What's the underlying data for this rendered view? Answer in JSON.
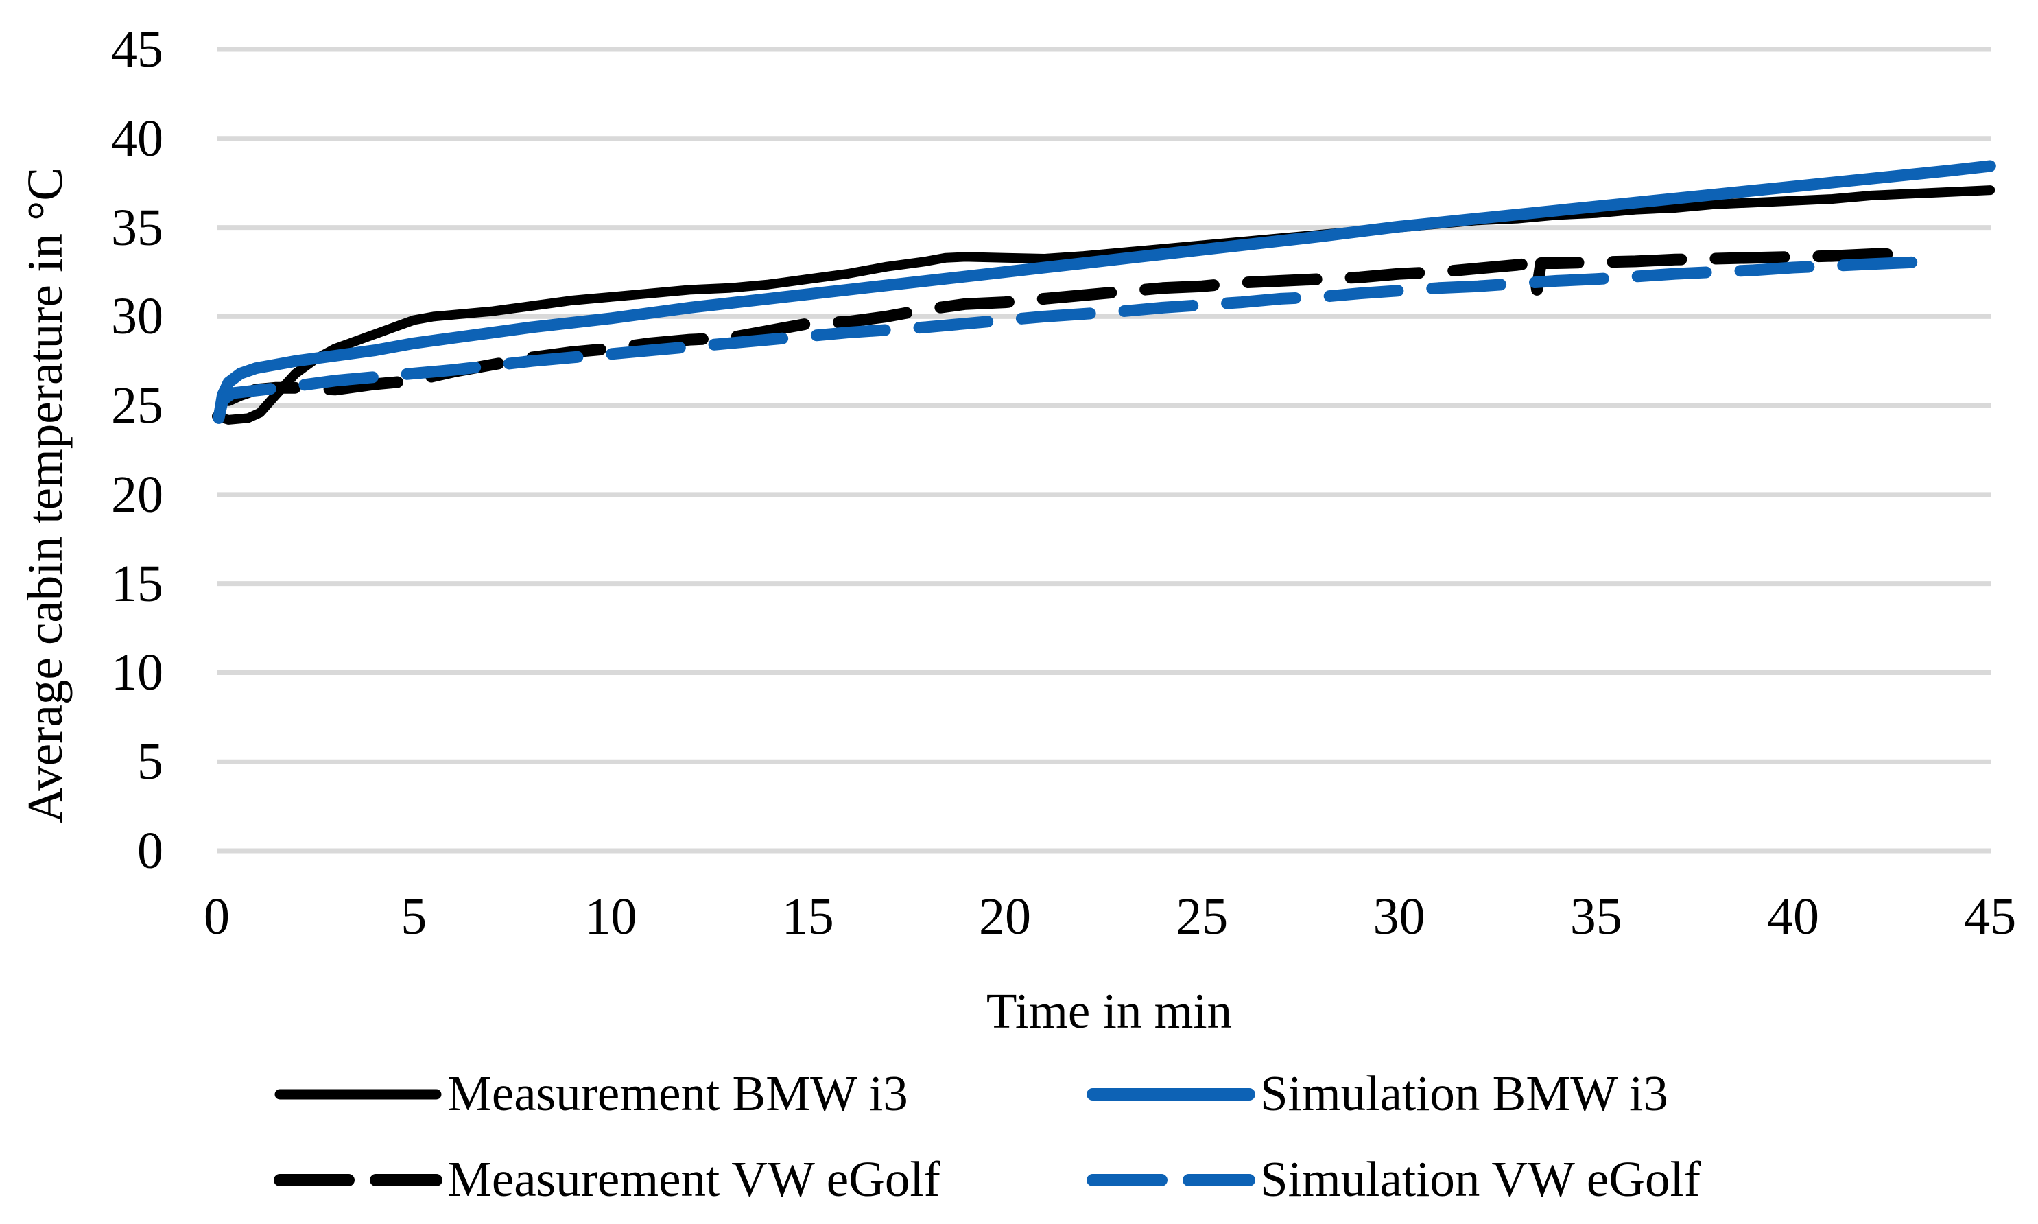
{
  "chart_data": {
    "type": "line",
    "title": "",
    "xlabel": "Time in min",
    "ylabel": "Average cabin temperature in °C",
    "xlim": [
      0,
      45
    ],
    "ylim": [
      0,
      45
    ],
    "x_ticks": [
      0,
      5,
      10,
      15,
      20,
      25,
      30,
      35,
      40,
      45
    ],
    "y_ticks": [
      0,
      5,
      10,
      15,
      20,
      25,
      30,
      35,
      40,
      45
    ],
    "grid": "horizontal-only",
    "gridline_color": "#D9D9D9",
    "legend_position": "bottom",
    "colors": {
      "measurement": "#000000",
      "simulation": "#0D62B5"
    },
    "series": [
      {
        "name": "Measurement BMW i3",
        "color": "#000000",
        "style": "solid",
        "width": 14,
        "points": [
          [
            0,
            24.4
          ],
          [
            0.3,
            24.2
          ],
          [
            0.8,
            24.3
          ],
          [
            1.1,
            24.6
          ],
          [
            1.5,
            25.6
          ],
          [
            2,
            26.8
          ],
          [
            2.5,
            27.6
          ],
          [
            3,
            28.2
          ],
          [
            3.5,
            28.6
          ],
          [
            4,
            29.0
          ],
          [
            4.5,
            29.4
          ],
          [
            5,
            29.8
          ],
          [
            5.5,
            30.0
          ],
          [
            6,
            30.1
          ],
          [
            6.5,
            30.2
          ],
          [
            7,
            30.3
          ],
          [
            7.5,
            30.45
          ],
          [
            8,
            30.6
          ],
          [
            8.5,
            30.75
          ],
          [
            9,
            30.9
          ],
          [
            9.5,
            31.0
          ],
          [
            10,
            31.1
          ],
          [
            11,
            31.3
          ],
          [
            12,
            31.5
          ],
          [
            13,
            31.6
          ],
          [
            14,
            31.8
          ],
          [
            15,
            32.1
          ],
          [
            16,
            32.4
          ],
          [
            17,
            32.8
          ],
          [
            18,
            33.1
          ],
          [
            18.5,
            33.3
          ],
          [
            19,
            33.35
          ],
          [
            20,
            33.3
          ],
          [
            21,
            33.25
          ],
          [
            22,
            33.4
          ],
          [
            23,
            33.6
          ],
          [
            24,
            33.8
          ],
          [
            25,
            34.0
          ],
          [
            26,
            34.2
          ],
          [
            27,
            34.4
          ],
          [
            28,
            34.6
          ],
          [
            29,
            34.8
          ],
          [
            30,
            35.0
          ],
          [
            31,
            35.2
          ],
          [
            32,
            35.4
          ],
          [
            33,
            35.5
          ],
          [
            34,
            35.7
          ],
          [
            35,
            35.8
          ],
          [
            36,
            36.0
          ],
          [
            37,
            36.1
          ],
          [
            38,
            36.3
          ],
          [
            39,
            36.4
          ],
          [
            40,
            36.5
          ],
          [
            41,
            36.6
          ],
          [
            42,
            36.8
          ],
          [
            43,
            36.9
          ],
          [
            44,
            37.0
          ],
          [
            45,
            37.1
          ]
        ]
      },
      {
        "name": "Simulation BMW i3",
        "color": "#0D62B5",
        "style": "solid",
        "width": 17,
        "points": [
          [
            0.05,
            24.3
          ],
          [
            0.15,
            25.6
          ],
          [
            0.3,
            26.3
          ],
          [
            0.6,
            26.8
          ],
          [
            1,
            27.1
          ],
          [
            2,
            27.5
          ],
          [
            3,
            27.8
          ],
          [
            4,
            28.1
          ],
          [
            5,
            28.5
          ],
          [
            6,
            28.8
          ],
          [
            7,
            29.1
          ],
          [
            8,
            29.4
          ],
          [
            9,
            29.65
          ],
          [
            10,
            29.9
          ],
          [
            12,
            30.5
          ],
          [
            14,
            31.0
          ],
          [
            16,
            31.5
          ],
          [
            18,
            32.0
          ],
          [
            20,
            32.5
          ],
          [
            22,
            33.0
          ],
          [
            24,
            33.5
          ],
          [
            26,
            34.0
          ],
          [
            28,
            34.5
          ],
          [
            30,
            35.05
          ],
          [
            32,
            35.5
          ],
          [
            34,
            35.95
          ],
          [
            36,
            36.4
          ],
          [
            38,
            36.85
          ],
          [
            40,
            37.3
          ],
          [
            42,
            37.75
          ],
          [
            44,
            38.2
          ],
          [
            45,
            38.45
          ]
        ]
      },
      {
        "name": "Measurement VW eGolf",
        "color": "#000000",
        "style": "dashed",
        "width": 17,
        "points": [
          [
            0.3,
            25.3
          ],
          [
            0.6,
            25.6
          ],
          [
            1,
            25.9
          ],
          [
            1.5,
            26.0
          ],
          [
            2,
            26.0
          ],
          [
            3,
            25.9
          ],
          [
            4,
            26.2
          ],
          [
            5,
            26.4
          ],
          [
            6,
            26.9
          ],
          [
            7,
            27.3
          ],
          [
            8,
            27.7
          ],
          [
            9,
            28.0
          ],
          [
            10,
            28.2
          ],
          [
            11,
            28.5
          ],
          [
            12,
            28.7
          ],
          [
            13,
            28.8
          ],
          [
            14,
            29.2
          ],
          [
            15,
            29.6
          ],
          [
            16,
            29.7
          ],
          [
            17,
            30.0
          ],
          [
            18,
            30.4
          ],
          [
            19,
            30.7
          ],
          [
            20,
            30.8
          ],
          [
            21,
            31.0
          ],
          [
            22,
            31.2
          ],
          [
            23,
            31.4
          ],
          [
            24,
            31.6
          ],
          [
            25,
            31.7
          ],
          [
            26,
            31.9
          ],
          [
            27,
            32.0
          ],
          [
            28,
            32.1
          ],
          [
            29,
            32.2
          ],
          [
            30,
            32.4
          ],
          [
            31,
            32.5
          ],
          [
            32,
            32.7
          ],
          [
            33,
            32.9
          ],
          [
            33.4,
            33.0
          ],
          [
            33.5,
            31.5
          ],
          [
            33.6,
            33.0
          ],
          [
            34,
            33.0
          ],
          [
            35,
            33.05
          ],
          [
            36,
            33.1
          ],
          [
            37,
            33.2
          ],
          [
            38,
            33.25
          ],
          [
            39,
            33.3
          ],
          [
            40,
            33.35
          ],
          [
            41,
            33.4
          ],
          [
            42,
            33.5
          ],
          [
            43.2,
            33.5
          ]
        ]
      },
      {
        "name": "Simulation VW eGolf",
        "color": "#0D62B5",
        "style": "dashed",
        "width": 17,
        "points": [
          [
            0.05,
            24.3
          ],
          [
            0.15,
            25.3
          ],
          [
            0.4,
            25.7
          ],
          [
            1,
            25.85
          ],
          [
            2,
            26.1
          ],
          [
            3,
            26.4
          ],
          [
            4,
            26.6
          ],
          [
            5,
            26.8
          ],
          [
            6,
            27.0
          ],
          [
            7,
            27.25
          ],
          [
            8,
            27.5
          ],
          [
            9,
            27.7
          ],
          [
            10,
            27.9
          ],
          [
            11,
            28.1
          ],
          [
            12,
            28.3
          ],
          [
            13,
            28.5
          ],
          [
            14,
            28.7
          ],
          [
            15,
            28.9
          ],
          [
            16,
            29.1
          ],
          [
            17,
            29.25
          ],
          [
            18,
            29.4
          ],
          [
            19,
            29.6
          ],
          [
            20,
            29.8
          ],
          [
            21,
            30.0
          ],
          [
            22,
            30.15
          ],
          [
            23,
            30.3
          ],
          [
            24,
            30.5
          ],
          [
            25,
            30.65
          ],
          [
            26,
            30.8
          ],
          [
            27,
            31.0
          ],
          [
            28,
            31.1
          ],
          [
            29,
            31.3
          ],
          [
            30,
            31.45
          ],
          [
            31,
            31.6
          ],
          [
            32,
            31.7
          ],
          [
            33,
            31.85
          ],
          [
            34,
            32.0
          ],
          [
            35,
            32.1
          ],
          [
            36,
            32.25
          ],
          [
            37,
            32.4
          ],
          [
            38,
            32.5
          ],
          [
            39,
            32.6
          ],
          [
            40,
            32.75
          ],
          [
            41,
            32.85
          ],
          [
            42,
            32.95
          ],
          [
            43.6,
            33.1
          ]
        ]
      }
    ]
  }
}
